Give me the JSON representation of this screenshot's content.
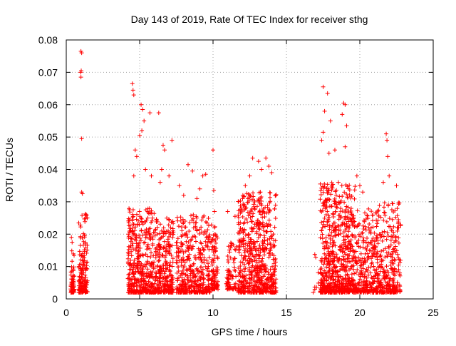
{
  "chart_data": {
    "type": "scatter",
    "title": "Day 143 of 2019, Rate Of TEC Index for receiver sthg",
    "xlabel": "GPS time / hours",
    "ylabel": "ROTI / TECUs",
    "xlim": [
      0,
      25
    ],
    "ylim": [
      0,
      0.08
    ],
    "grid": true,
    "marker": "+",
    "series_color": "#ff0000",
    "x_ticks": [
      0,
      5,
      10,
      15,
      20,
      25
    ],
    "x_tick_labels": [
      "0",
      "5",
      "10",
      "15",
      "20",
      "25"
    ],
    "y_ticks": [
      0,
      0.01,
      0.02,
      0.03,
      0.04,
      0.05,
      0.06,
      0.07,
      0.08
    ],
    "y_tick_labels": [
      "0",
      "0.01",
      "0.02",
      "0.03",
      "0.04",
      "0.05",
      "0.06",
      "0.07",
      "0.08"
    ],
    "series": [
      {
        "name": "ROTI",
        "clusters": [
          {
            "x": [
              0.3,
              0.55
            ],
            "y": [
              0.002,
              0.015
            ],
            "n": 60,
            "outliers": [
              [
                0.35,
                0.019
              ],
              [
                0.4,
                0.0175
              ]
            ]
          },
          {
            "x": [
              0.85,
              1.45
            ],
            "y": [
              0.002,
              0.027
            ],
            "n": 150,
            "outliers": [
              [
                1.0,
                0.0765
              ],
              [
                1.05,
                0.076
              ],
              [
                1.02,
                0.0705
              ],
              [
                0.98,
                0.07
              ],
              [
                1.0,
                0.0685
              ],
              [
                1.05,
                0.0495
              ],
              [
                1.05,
                0.033
              ],
              [
                1.1,
                0.0325
              ]
            ]
          },
          {
            "x": [
              4.2,
              6.0
            ],
            "y": [
              0.002,
              0.028
            ],
            "n": 420,
            "outliers": [
              [
                4.5,
                0.0665
              ],
              [
                4.55,
                0.0645
              ],
              [
                4.6,
                0.063
              ],
              [
                5.1,
                0.06
              ],
              [
                5.2,
                0.0585
              ],
              [
                5.3,
                0.055
              ],
              [
                5.15,
                0.052
              ],
              [
                5.0,
                0.0505
              ],
              [
                4.7,
                0.046
              ],
              [
                4.8,
                0.044
              ],
              [
                5.4,
                0.04
              ],
              [
                4.6,
                0.038
              ],
              [
                5.7,
                0.0575
              ],
              [
                5.8,
                0.038
              ],
              [
                6.3,
                0.0575
              ]
            ]
          },
          {
            "x": [
              6.0,
              7.3
            ],
            "y": [
              0.002,
              0.025
            ],
            "n": 300,
            "outliers": [
              [
                6.6,
                0.0475
              ],
              [
                6.7,
                0.046
              ],
              [
                6.5,
                0.04
              ],
              [
                7.2,
                0.049
              ],
              [
                7.0,
                0.038
              ],
              [
                6.4,
                0.036
              ]
            ]
          },
          {
            "x": [
              7.5,
              9.8
            ],
            "y": [
              0.002,
              0.026
            ],
            "n": 420,
            "outliers": [
              [
                7.7,
                0.035
              ],
              [
                8.3,
                0.0415
              ],
              [
                8.6,
                0.0395
              ],
              [
                8.0,
                0.032
              ],
              [
                9.1,
                0.034
              ],
              [
                9.3,
                0.038
              ],
              [
                9.5,
                0.0385
              ],
              [
                8.9,
                0.031
              ]
            ]
          },
          {
            "x": [
              9.85,
              10.35
            ],
            "y": [
              0.003,
              0.023
            ],
            "n": 100,
            "outliers": [
              [
                10.0,
                0.046
              ],
              [
                10.05,
                0.0335
              ],
              [
                10.1,
                0.027
              ]
            ]
          },
          {
            "x": [
              10.9,
              11.6
            ],
            "y": [
              0.003,
              0.018
            ],
            "n": 80,
            "outliers": [
              [
                11.0,
                0.027
              ],
              [
                11.5,
                0.0255
              ]
            ]
          },
          {
            "x": [
              11.7,
              14.3
            ],
            "y": [
              0.002,
              0.033
            ],
            "n": 650,
            "outliers": [
              [
                12.7,
                0.0435
              ],
              [
                13.1,
                0.0425
              ],
              [
                13.6,
                0.0435
              ],
              [
                13.3,
                0.04
              ],
              [
                12.5,
                0.038
              ],
              [
                13.8,
                0.041
              ],
              [
                14.0,
                0.039
              ],
              [
                12.2,
                0.035
              ]
            ]
          },
          {
            "x": [
              16.8,
              17.2
            ],
            "y": [
              0.002,
              0.024
            ],
            "n": 8,
            "outliers": []
          },
          {
            "x": [
              17.3,
              19.7
            ],
            "y": [
              0.002,
              0.036
            ],
            "n": 700,
            "outliers": [
              [
                17.5,
                0.0655
              ],
              [
                17.8,
                0.0635
              ],
              [
                17.6,
                0.058
              ],
              [
                18.0,
                0.055
              ],
              [
                17.5,
                0.0515
              ],
              [
                17.4,
                0.049
              ],
              [
                18.9,
                0.0605
              ],
              [
                19.0,
                0.06
              ],
              [
                18.8,
                0.057
              ],
              [
                19.1,
                0.0535
              ],
              [
                19.0,
                0.047
              ],
              [
                18.3,
                0.046
              ],
              [
                17.9,
                0.045
              ]
            ]
          },
          {
            "x": [
              19.7,
              21.3
            ],
            "y": [
              0.002,
              0.028
            ],
            "n": 300,
            "outliers": [
              [
                20.0,
                0.035
              ],
              [
                20.2,
                0.033
              ],
              [
                19.8,
                0.038
              ]
            ]
          },
          {
            "x": [
              21.3,
              22.8
            ],
            "y": [
              0.002,
              0.03
            ],
            "n": 260,
            "outliers": [
              [
                21.8,
                0.051
              ],
              [
                21.85,
                0.049
              ],
              [
                21.9,
                0.044
              ],
              [
                22.0,
                0.038
              ],
              [
                21.6,
                0.036
              ],
              [
                22.5,
                0.035
              ]
            ]
          }
        ]
      }
    ]
  }
}
